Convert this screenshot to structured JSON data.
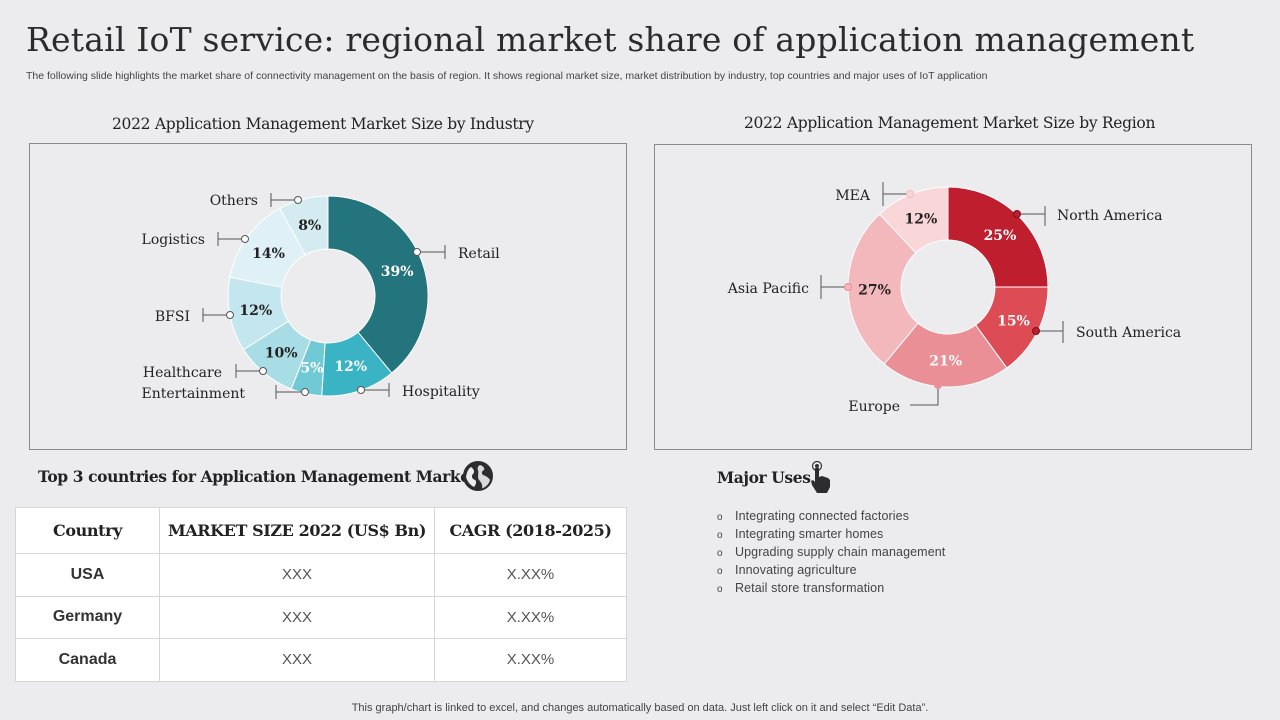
{
  "page": {
    "title": "Retail IoT service: regional market share of application management",
    "subtitle": "The following slide highlights the market share of connectivity management on the basis of region. It shows regional market size, market distribution by industry, top countries and major uses of IoT application",
    "footer": "This graph/chart is linked to excel,  and changes automatically based on data. Just left click on it and select “Edit Data”."
  },
  "chart_data": [
    {
      "type": "pie",
      "subtype": "donut",
      "title": "2022 Application Management Market Size by Industry",
      "categories": [
        "Retail",
        "Hospitality",
        "Entertainment",
        "Healthcare",
        "BFSI",
        "Logistics",
        "Others"
      ],
      "values": [
        39,
        12,
        5,
        10,
        12,
        14,
        8
      ],
      "value_labels": [
        "39%",
        "12%",
        "5%",
        "10%",
        "12%",
        "14%",
        "8%"
      ],
      "colors": [
        "#24747e",
        "#3ab3c4",
        "#72c9d6",
        "#a9dde5",
        "#c4e6ee",
        "#dff1f6",
        "#d4ecf1"
      ],
      "label_colors": [
        "#ffffff",
        "#ffffff",
        "#ffffff",
        "#222222",
        "#222222",
        "#222222",
        "#222222"
      ]
    },
    {
      "type": "pie",
      "subtype": "donut",
      "title": "2022 Application Management Market Size by Region",
      "categories": [
        "North America",
        "South America",
        "Europe",
        "Asia Pacific",
        "MEA"
      ],
      "values": [
        25,
        15,
        21,
        27,
        12
      ],
      "value_labels": [
        "25%",
        "15%",
        "21%",
        "27%",
        "12%"
      ],
      "colors": [
        "#be1e2d",
        "#dd4b55",
        "#e98f95",
        "#f3b8bb",
        "#f9d6d8"
      ],
      "label_colors": [
        "#ffffff",
        "#ffffff",
        "#ffffff",
        "#222222",
        "#222222"
      ]
    }
  ],
  "countries_section": {
    "title": "Top 3 countries for Application Management Market",
    "icon": "globe-icon",
    "headers": [
      "Country",
      "MARKET SIZE 2022 (US$ Bn)",
      "CAGR (2018-2025)"
    ],
    "rows": [
      [
        "USA",
        "XXX",
        "X.XX%"
      ],
      [
        "Germany",
        "XXX",
        "X.XX%"
      ],
      [
        "Canada",
        "XXX",
        "X.XX%"
      ]
    ]
  },
  "uses_section": {
    "title": "Major Uses",
    "icon": "pointer-hand-icon",
    "bullet": "o",
    "items": [
      "Integrating  connected factories",
      "Integrating  smarter homes",
      "Upgrading  supply chain management",
      "Innovating  agriculture",
      "Retail store transformation"
    ]
  }
}
